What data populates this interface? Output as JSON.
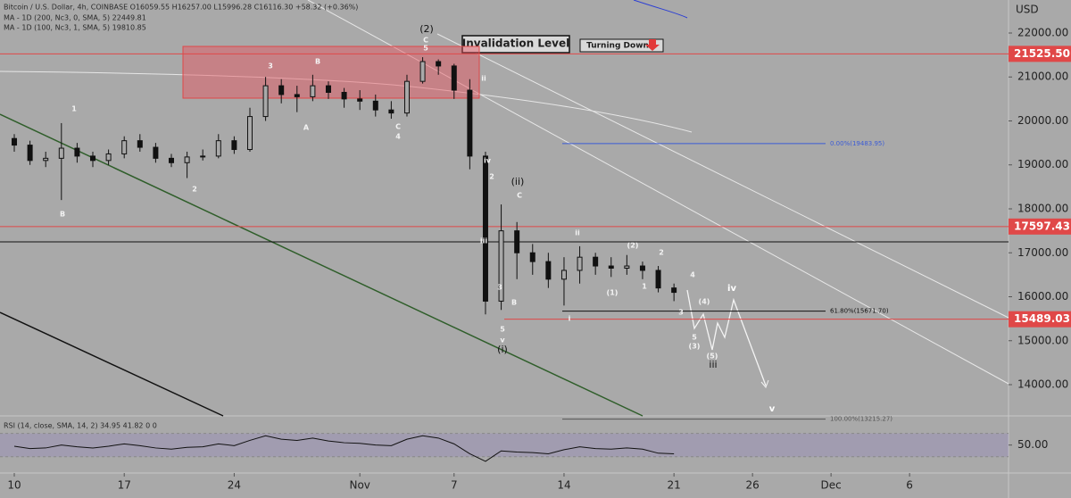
{
  "chart_data": {
    "type": "candlestick",
    "header": "Bitcoin / U.S. Dollar, 4h, COINBASE  O16059.55  H16257.00  L15996.28  C16116.30  +58.32 (+0.36%)",
    "ma_labels": [
      "MA - 1D (200, Nc3, 0, SMA, 5)  22449.81",
      "MA - 1D (100, Nc3, 1, SMA, 5)  19810.85"
    ],
    "currency": "USD",
    "candle_color": "#111111",
    "x": [
      0,
      1,
      2,
      3,
      4,
      5,
      6,
      7,
      8,
      9,
      10,
      11,
      12,
      13,
      14,
      15,
      16,
      17,
      18,
      19,
      20,
      21,
      22,
      23,
      24,
      25,
      26,
      27,
      28,
      29,
      30,
      31,
      32,
      33,
      34,
      35,
      36,
      37,
      38,
      39,
      40,
      41,
      42
    ],
    "open": [
      19600,
      19450,
      19100,
      19150,
      19380,
      19200,
      19100,
      19250,
      19550,
      19400,
      19150,
      19050,
      19180,
      19200,
      19550,
      19350,
      20100,
      20800,
      20600,
      20550,
      20800,
      20650,
      20500,
      20450,
      20250,
      20180,
      20900,
      21350,
      21250,
      20700,
      19200,
      15900,
      17500,
      17000,
      16800,
      16400,
      16600,
      16900,
      16700,
      16650,
      16700,
      16600,
      16200
    ],
    "high": [
      19700,
      19550,
      19300,
      19950,
      19500,
      19300,
      19350,
      19650,
      19700,
      19500,
      19250,
      19300,
      19350,
      19700,
      19650,
      20300,
      21000,
      20950,
      20800,
      21050,
      20900,
      20750,
      20700,
      20600,
      20450,
      21050,
      21450,
      21400,
      21300,
      20950,
      19300,
      18100,
      17700,
      17200,
      17000,
      16900,
      17150,
      17000,
      16900,
      16950,
      16800,
      16700,
      16300
    ],
    "low": [
      19300,
      19000,
      18950,
      18200,
      19050,
      18950,
      19000,
      19150,
      19300,
      19050,
      18950,
      18700,
      19100,
      19150,
      19250,
      19300,
      20000,
      20400,
      20200,
      20450,
      20500,
      20300,
      20250,
      20100,
      20050,
      20100,
      20850,
      21050,
      20500,
      18900,
      15600,
      15700,
      16400,
      16500,
      16200,
      15800,
      16300,
      16500,
      16450,
      16500,
      16400,
      16100,
      15900
    ],
    "close": [
      19450,
      19100,
      19150,
      19380,
      19200,
      19100,
      19250,
      19550,
      19400,
      19150,
      19050,
      19180,
      19200,
      19550,
      19350,
      20100,
      20800,
      20600,
      20550,
      20800,
      20650,
      20500,
      20450,
      20250,
      20180,
      20900,
      21350,
      21250,
      20700,
      19200,
      15900,
      17500,
      17000,
      16800,
      16400,
      16600,
      16900,
      16700,
      16650,
      16700,
      16600,
      16200,
      16100
    ],
    "xlim": [
      -0.91,
      63.3
    ],
    "xticks": [
      {
        "value": 0,
        "label": "10"
      },
      {
        "value": 7,
        "label": "17"
      },
      {
        "value": 14,
        "label": "24"
      },
      {
        "value": 22,
        "label": "Nov"
      },
      {
        "value": 28,
        "label": "7"
      },
      {
        "value": 35,
        "label": "14"
      },
      {
        "value": 42,
        "label": "21"
      },
      {
        "value": 47,
        "label": "26"
      },
      {
        "value": 52,
        "label": "Dec"
      },
      {
        "value": 57,
        "label": "6"
      }
    ],
    "ylim": [
      13310,
      22751
    ],
    "yticks": [
      {
        "value": 14000,
        "label": "14000.00"
      },
      {
        "value": 15000,
        "label": "15000.00"
      },
      {
        "value": 16000,
        "label": "16000.00"
      },
      {
        "value": 17000,
        "label": "17000.00"
      },
      {
        "value": 18000,
        "label": "18000.00"
      },
      {
        "value": 19000,
        "label": "19000.00"
      },
      {
        "value": 20000,
        "label": "20000.00"
      },
      {
        "value": 21000,
        "label": "21000.00"
      },
      {
        "value": 22000,
        "label": "22000.00"
      }
    ],
    "levels": [
      {
        "value": 21525.5,
        "label": "21525.50"
      },
      {
        "value": 17597.43,
        "label": "17597.43"
      },
      {
        "value": 15489.03,
        "label": "15489.03"
      }
    ],
    "support_line": 17250,
    "fib_levels": [
      {
        "value": 19483.95,
        "label": "0.00%(19483.95)"
      },
      {
        "value": 15671.7,
        "label": "61.80%(15671.70)"
      },
      {
        "value": 13215.27,
        "label": "100.00%(13215.27)"
      }
    ],
    "invalidation_label": "Invalidation Level",
    "turning_label": "Turning Down",
    "wave_labels": [
      "(2)",
      "1",
      "B",
      "2",
      "3",
      "B",
      "A",
      "C",
      "4",
      "C",
      "5",
      "ii",
      "iv",
      "2",
      "(ii)",
      "C",
      "iii",
      "3",
      "B",
      "5",
      "v",
      "(i)",
      "ii",
      "i",
      "(2)",
      "2",
      "(1)",
      "1",
      "4",
      "(4)",
      "3",
      "5",
      "(3)",
      "(5)",
      "iii",
      "iv",
      "v"
    ],
    "rsi_label": "RSI (14, close, SMA, 14, 2)  34.95  41.82  0  0",
    "rsi": [
      48,
      44,
      45,
      50,
      47,
      45,
      48,
      52,
      49,
      45,
      43,
      46,
      47,
      52,
      49,
      58,
      66,
      60,
      58,
      62,
      57,
      54,
      53,
      50,
      49,
      60,
      66,
      62,
      52,
      35,
      22,
      40,
      38,
      37,
      35,
      42,
      47,
      44,
      43,
      45,
      43,
      36,
      35
    ],
    "rsi_lim": [
      2,
      97
    ],
    "rsi_ticks": [
      {
        "value": 50,
        "label": "50.00"
      }
    ]
  }
}
